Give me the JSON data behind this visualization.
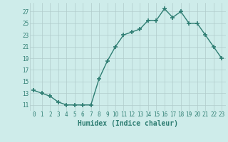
{
  "x": [
    0,
    1,
    2,
    3,
    4,
    5,
    6,
    7,
    8,
    9,
    10,
    11,
    12,
    13,
    14,
    15,
    16,
    17,
    18,
    19,
    20,
    21,
    22,
    23
  ],
  "y": [
    13.5,
    13.0,
    12.5,
    11.5,
    11.0,
    11.0,
    11.0,
    11.0,
    15.5,
    18.5,
    21.0,
    23.0,
    23.5,
    24.0,
    25.5,
    25.5,
    27.5,
    26.0,
    27.0,
    25.0,
    25.0,
    23.0,
    21.0,
    19.0
  ],
  "line_color": "#2e7d72",
  "marker": "+",
  "marker_size": 4,
  "marker_lw": 1.2,
  "line_width": 1.0,
  "bg_color": "#ceecea",
  "grid_color": "#b0cccb",
  "tick_color": "#2e7d72",
  "xlabel": "Humidex (Indice chaleur)",
  "xlabel_fontsize": 7,
  "xlabel_color": "#2e7d72",
  "ytick_labels": [
    "11",
    "13",
    "15",
    "17",
    "19",
    "21",
    "23",
    "25",
    "27"
  ],
  "ytick_values": [
    11,
    13,
    15,
    17,
    19,
    21,
    23,
    25,
    27
  ],
  "ylim": [
    10.0,
    28.5
  ],
  "xlim": [
    -0.5,
    23.5
  ],
  "tick_fontsize": 5.5
}
